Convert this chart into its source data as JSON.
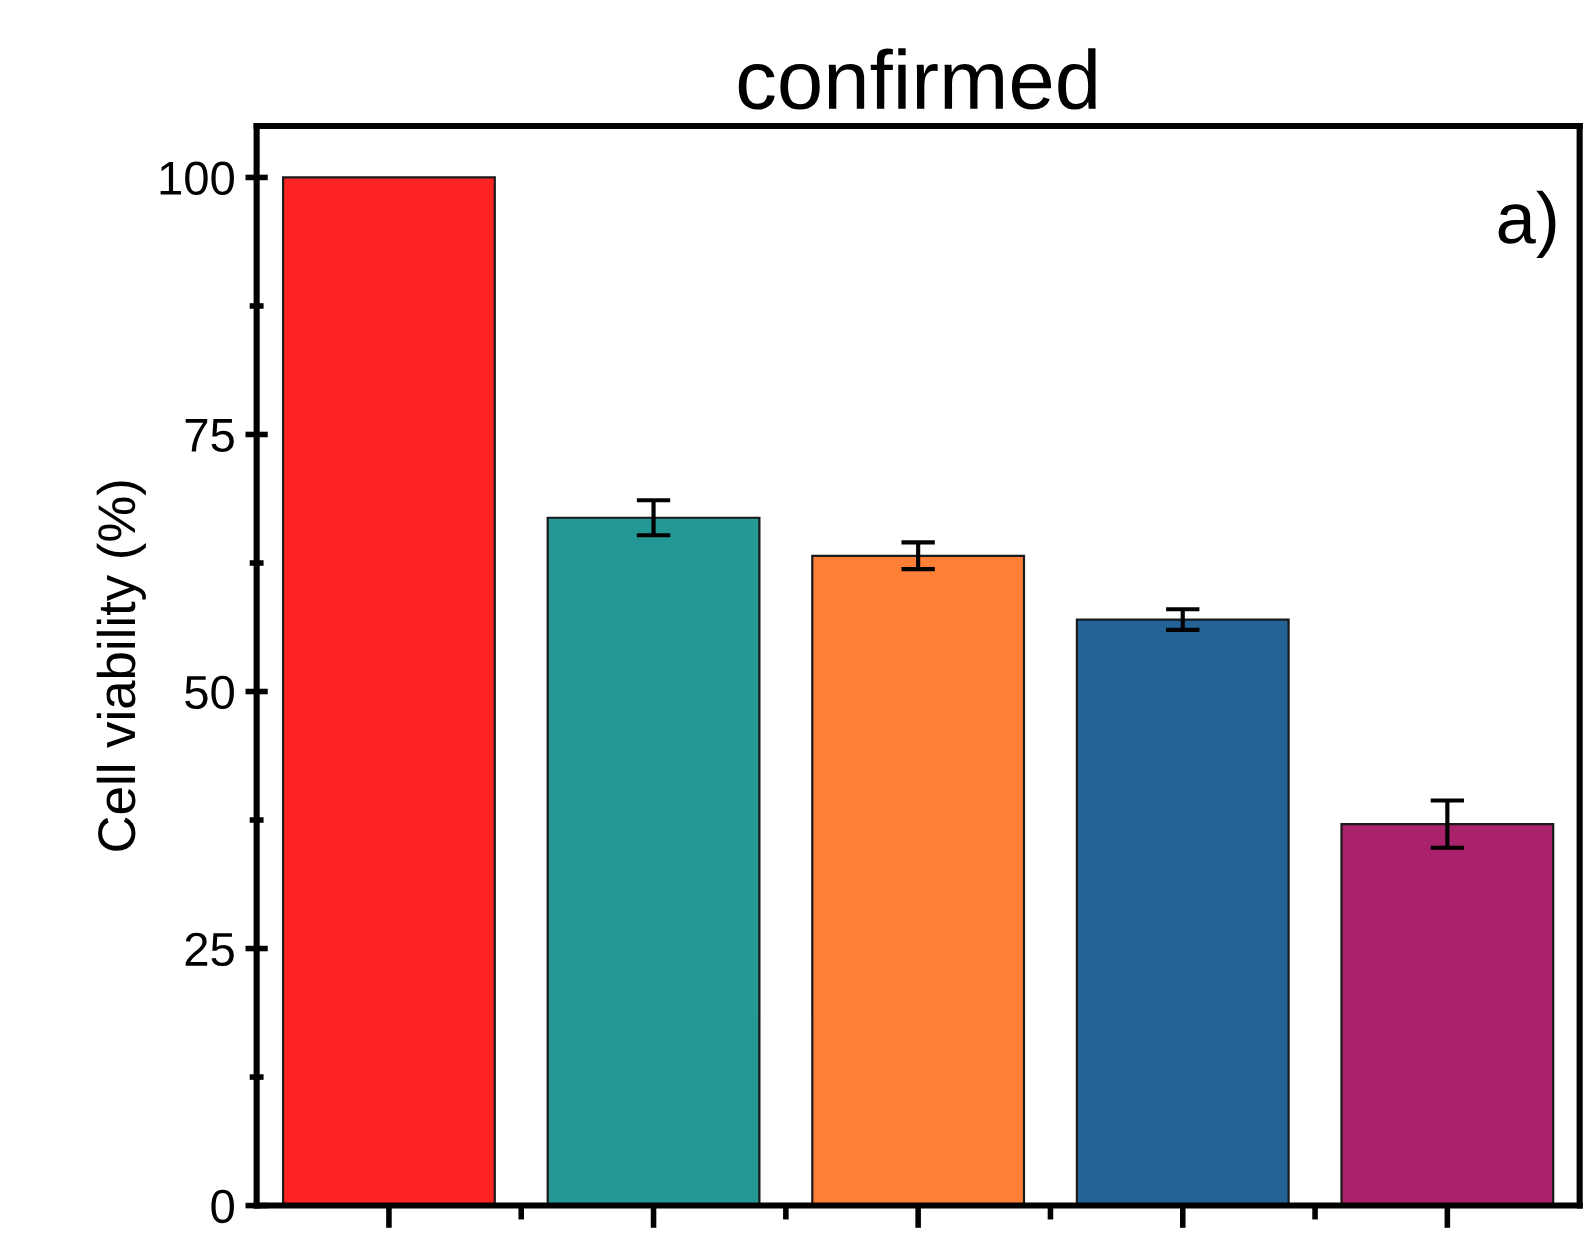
{
  "chart_data": {
    "type": "bar",
    "title": "confirmed",
    "ylabel": "Cell viability (%)",
    "annotations": [
      "a)"
    ],
    "categories": [
      null,
      null,
      null,
      null,
      null
    ],
    "values": [
      100,
      66.9,
      63.2,
      57.0,
      37.1
    ],
    "errors": [
      null,
      1.7,
      1.3,
      1.0,
      2.3
    ],
    "colors": [
      "#fe2424",
      "#239894",
      "#fe7f35",
      "#246398",
      "#aa226b"
    ],
    "ylim": [
      0,
      105
    ],
    "yticks": [
      0,
      {
        "value": 12.5,
        "label": null
      },
      25,
      {
        "value": 37.5,
        "label": null
      },
      50,
      {
        "value": 62.5,
        "label": null
      },
      75,
      {
        "value": 87.5,
        "label": null
      },
      100
    ],
    "grid": false,
    "legend": false
  }
}
